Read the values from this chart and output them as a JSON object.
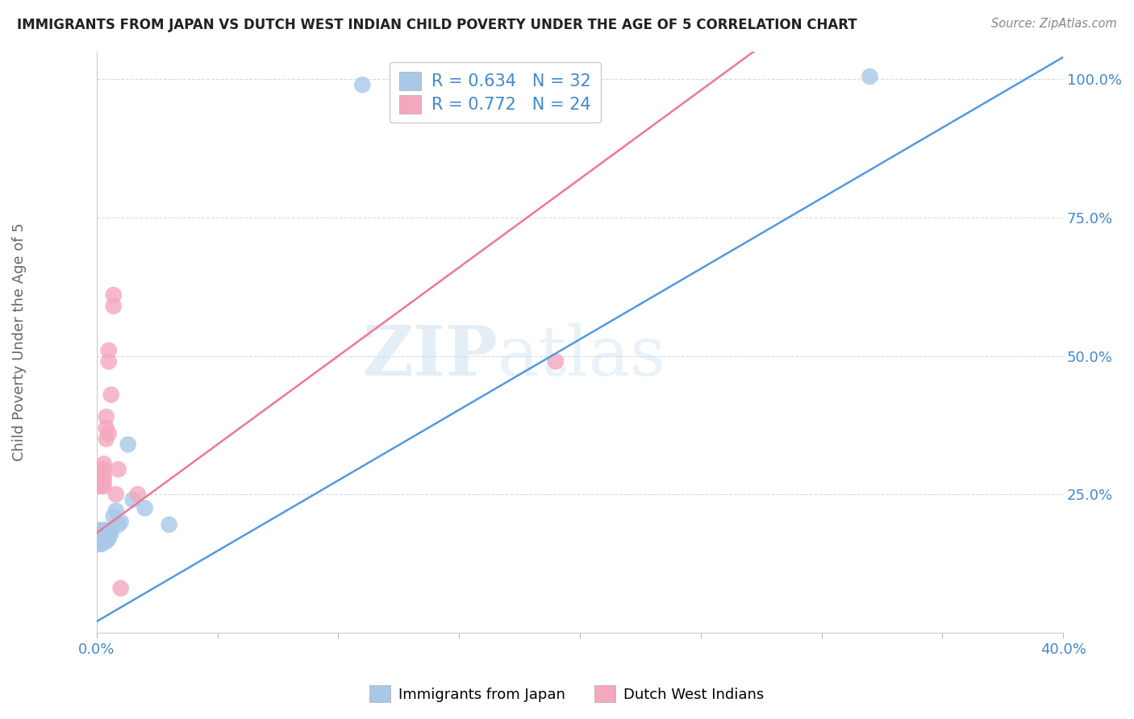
{
  "title": "IMMIGRANTS FROM JAPAN VS DUTCH WEST INDIAN CHILD POVERTY UNDER THE AGE OF 5 CORRELATION CHART",
  "source": "Source: ZipAtlas.com",
  "ylabel": "Child Poverty Under the Age of 5",
  "xlim": [
    0.0,
    0.4
  ],
  "ylim": [
    0.0,
    1.05
  ],
  "ytick_vals": [
    0.0,
    0.25,
    0.5,
    0.75,
    1.0
  ],
  "ytick_labels": [
    "",
    "25.0%",
    "50.0%",
    "75.0%",
    "100.0%"
  ],
  "xtick_vals": [
    0.0,
    0.05,
    0.1,
    0.15,
    0.2,
    0.25,
    0.3,
    0.35,
    0.4
  ],
  "xtick_labels": [
    "0.0%",
    "",
    "",
    "",
    "",
    "",
    "",
    "",
    "40.0%"
  ],
  "legend1_label": "R = 0.634   N = 32",
  "legend2_label": "R = 0.772   N = 24",
  "legend_bottom_label1": "Immigrants from Japan",
  "legend_bottom_label2": "Dutch West Indians",
  "blue_color": "#a8c8e8",
  "pink_color": "#f4a8be",
  "blue_line_color": "#5599dd",
  "pink_line_color": "#ee7799",
  "watermark_zip": "ZIP",
  "watermark_atlas": "atlas",
  "blue_line_slope": 2.55,
  "blue_line_intercept": 0.02,
  "pink_line_slope": 3.2,
  "pink_line_intercept": 0.18,
  "blue_points": [
    [
      0.001,
      0.185
    ],
    [
      0.001,
      0.175
    ],
    [
      0.001,
      0.17
    ],
    [
      0.001,
      0.165
    ],
    [
      0.001,
      0.16
    ],
    [
      0.002,
      0.185
    ],
    [
      0.002,
      0.18
    ],
    [
      0.002,
      0.175
    ],
    [
      0.002,
      0.17
    ],
    [
      0.002,
      0.165
    ],
    [
      0.002,
      0.16
    ],
    [
      0.003,
      0.185
    ],
    [
      0.003,
      0.18
    ],
    [
      0.003,
      0.175
    ],
    [
      0.003,
      0.17
    ],
    [
      0.003,
      0.165
    ],
    [
      0.004,
      0.185
    ],
    [
      0.004,
      0.175
    ],
    [
      0.004,
      0.165
    ],
    [
      0.005,
      0.18
    ],
    [
      0.005,
      0.17
    ],
    [
      0.006,
      0.18
    ],
    [
      0.007,
      0.21
    ],
    [
      0.008,
      0.22
    ],
    [
      0.009,
      0.195
    ],
    [
      0.01,
      0.2
    ],
    [
      0.013,
      0.34
    ],
    [
      0.015,
      0.24
    ],
    [
      0.02,
      0.225
    ],
    [
      0.03,
      0.195
    ],
    [
      0.11,
      0.99
    ],
    [
      0.32,
      1.005
    ]
  ],
  "pink_points": [
    [
      0.001,
      0.275
    ],
    [
      0.001,
      0.265
    ],
    [
      0.002,
      0.295
    ],
    [
      0.002,
      0.28
    ],
    [
      0.002,
      0.265
    ],
    [
      0.003,
      0.305
    ],
    [
      0.003,
      0.295
    ],
    [
      0.003,
      0.285
    ],
    [
      0.003,
      0.275
    ],
    [
      0.003,
      0.265
    ],
    [
      0.004,
      0.39
    ],
    [
      0.004,
      0.37
    ],
    [
      0.004,
      0.35
    ],
    [
      0.005,
      0.51
    ],
    [
      0.005,
      0.49
    ],
    [
      0.005,
      0.36
    ],
    [
      0.006,
      0.43
    ],
    [
      0.007,
      0.61
    ],
    [
      0.007,
      0.59
    ],
    [
      0.008,
      0.25
    ],
    [
      0.009,
      0.295
    ],
    [
      0.01,
      0.08
    ],
    [
      0.017,
      0.25
    ],
    [
      0.19,
      0.49
    ]
  ]
}
